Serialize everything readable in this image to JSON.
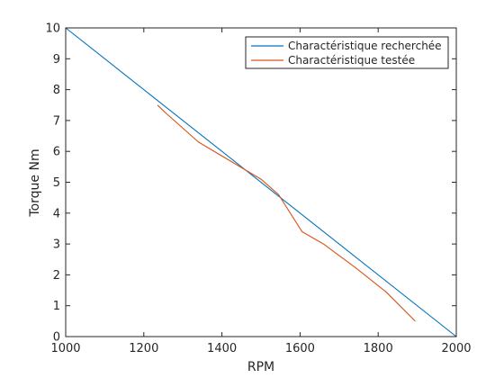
{
  "chart_data": {
    "type": "line",
    "xlabel": "RPM",
    "ylabel": "Torque Nm",
    "xlim": [
      1000,
      2000
    ],
    "ylim": [
      0,
      10
    ],
    "xticks": [
      1000,
      1200,
      1400,
      1600,
      1800,
      2000
    ],
    "yticks": [
      0,
      1,
      2,
      3,
      4,
      5,
      6,
      7,
      8,
      9,
      10
    ],
    "grid": false,
    "legend_position": "top-right",
    "series": [
      {
        "name": "Charactéristique recherchée",
        "color": "#0072BD",
        "x": [
          1000,
          2000
        ],
        "y": [
          10,
          0
        ]
      },
      {
        "name": "Charactéristique testée",
        "color": "#D95319",
        "x": [
          1235,
          1260,
          1340,
          1420,
          1500,
          1545,
          1605,
          1660,
          1740,
          1820,
          1895
        ],
        "y": [
          7.5,
          7.2,
          6.3,
          5.7,
          5.1,
          4.6,
          3.4,
          3.0,
          2.25,
          1.45,
          0.5
        ]
      }
    ]
  }
}
